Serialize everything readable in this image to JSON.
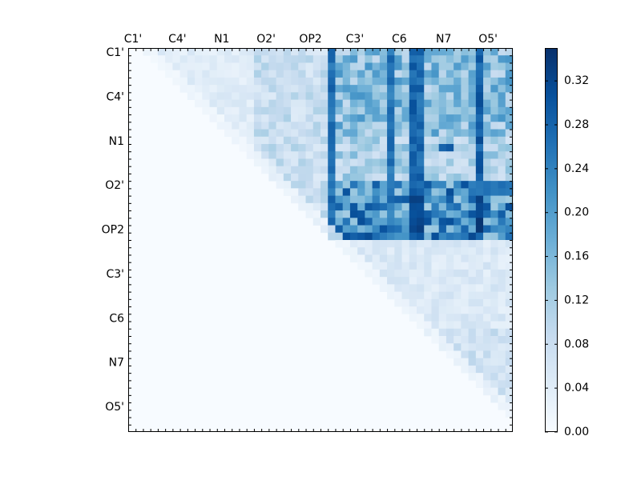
{
  "chart_data": {
    "type": "heatmap",
    "title": "",
    "xlabel": "",
    "ylabel": "",
    "grid": false,
    "n": 52,
    "row_labels": [
      "C1'",
      "C4'",
      "N1",
      "O2'",
      "OP2",
      "C3'",
      "C6",
      "N7",
      "O5'"
    ],
    "col_labels": [
      "C1'",
      "C4'",
      "N1",
      "O2'",
      "OP2",
      "C3'",
      "C6",
      "N7",
      "O5'"
    ],
    "label_indices": [
      0,
      6,
      12,
      18,
      24,
      30,
      36,
      42,
      48
    ],
    "col_label_position": "top",
    "colormap": {
      "name": "Blues",
      "stops": [
        "#f7fbff",
        "#deebf7",
        "#c6dbef",
        "#9ecae1",
        "#6baed6",
        "#4292c6",
        "#2171b5",
        "#08519c",
        "#08306b"
      ]
    },
    "colorbar": {
      "min": 0.0,
      "max": 0.35,
      "ticks": [
        0.0,
        0.04,
        0.08,
        0.12,
        0.16,
        0.2,
        0.24,
        0.28,
        0.32
      ],
      "tick_labels": [
        "0.00",
        "0.04",
        "0.08",
        "0.12",
        "0.16",
        "0.20",
        "0.24",
        "0.28",
        "0.32"
      ],
      "placement": "right"
    },
    "structure": "upper-triangular matrix of values; lower triangle is 0",
    "blocks": [
      {
        "rows": [
          0,
          11
        ],
        "cols": [
          27,
          51
        ],
        "value": 0.15
      },
      {
        "rows": [
          12,
          17
        ],
        "cols": [
          27,
          51
        ],
        "value": 0.11
      },
      {
        "rows": [
          18,
          25
        ],
        "cols": [
          27,
          51
        ],
        "value": 0.22
      },
      {
        "rows": [
          26,
          37
        ],
        "cols": [
          27,
          51
        ],
        "value": 0.05
      },
      {
        "rows": [
          38,
          51
        ],
        "cols": [
          27,
          51
        ],
        "value": 0.07
      },
      {
        "rows": [
          0,
          25
        ],
        "cols": [
          17,
          26
        ],
        "value": 0.08
      },
      {
        "rows": [
          0,
          16
        ],
        "cols": [
          0,
          16
        ],
        "value": 0.04
      }
    ],
    "hot_columns": [
      {
        "col": 27,
        "rows": [
          0,
          25
        ],
        "value": 0.28
      },
      {
        "col": 35,
        "rows": [
          0,
          25
        ],
        "value": 0.27
      },
      {
        "col": 38,
        "rows": [
          0,
          25
        ],
        "value": 0.3
      },
      {
        "col": 39,
        "rows": [
          0,
          25
        ],
        "value": 0.29
      },
      {
        "col": 47,
        "rows": [
          0,
          25
        ],
        "value": 0.3
      }
    ],
    "hot_cells": [
      {
        "rows": [
          20,
          24
        ],
        "cols": [
          38,
          39
        ],
        "value": 0.34
      },
      {
        "rows": [
          20,
          24
        ],
        "cols": [
          47,
          47
        ],
        "value": 0.35
      },
      {
        "rows": [
          13,
          13
        ],
        "cols": [
          42,
          43
        ],
        "value": 0.3
      },
      {
        "rows": [
          18,
          19
        ],
        "cols": [
          46,
          51
        ],
        "value": 0.27
      }
    ]
  }
}
